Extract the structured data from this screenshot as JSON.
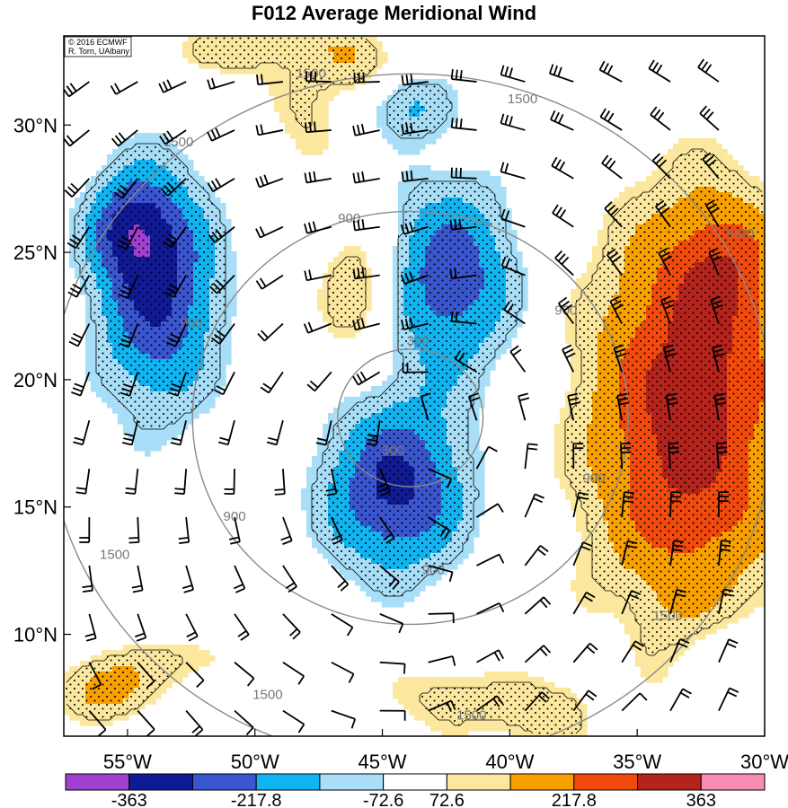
{
  "title": "F012 Average Meridional Wind",
  "credit": {
    "line1": "© 2016 ECMWF",
    "line2": "R. Torn, UAlbany"
  },
  "map": {
    "lon_range": [
      -57.5,
      -30
    ],
    "lat_range": [
      6,
      33.5
    ],
    "lon_ticks": [
      {
        "value": -55,
        "label": "55°W"
      },
      {
        "value": -50,
        "label": "50°W"
      },
      {
        "value": -45,
        "label": "45°W"
      },
      {
        "value": -40,
        "label": "40°W"
      },
      {
        "value": -35,
        "label": "35°W"
      },
      {
        "value": -30,
        "label": "30°W"
      }
    ],
    "lat_ticks": [
      {
        "value": 30,
        "label": "30°N"
      },
      {
        "value": 25,
        "label": "25°N"
      },
      {
        "value": 20,
        "label": "20°N"
      },
      {
        "value": 15,
        "label": "15°N"
      },
      {
        "value": 10,
        "label": "10°N"
      }
    ],
    "range_rings": {
      "center": {
        "lon": -43.9,
        "lat": 18.5
      },
      "radii_km": [
        300,
        900,
        1500
      ],
      "labels": [
        {
          "text": "300",
          "lon": -43.6,
          "lat": 21.5
        },
        {
          "text": "300",
          "lon": -44.6,
          "lat": 17.2
        },
        {
          "text": "900",
          "lon": -46.3,
          "lat": 26.3
        },
        {
          "text": "900",
          "lon": -37.8,
          "lat": 22.7
        },
        {
          "text": "900",
          "lon": -50.8,
          "lat": 14.6
        },
        {
          "text": "900",
          "lon": -52.5,
          "lat": 22.2
        },
        {
          "text": "900",
          "lon": -43.0,
          "lat": 12.5
        },
        {
          "text": "900",
          "lon": -36.7,
          "lat": 16.1
        },
        {
          "text": "1500",
          "lon": -47.8,
          "lat": 32.0
        },
        {
          "text": "1500",
          "lon": -39.5,
          "lat": 31.0
        },
        {
          "text": "1500",
          "lon": -53.0,
          "lat": 29.3
        },
        {
          "text": "1500",
          "lon": -55.5,
          "lat": 13.1
        },
        {
          "text": "1500",
          "lon": -31.0,
          "lat": 25.7
        },
        {
          "text": "1500",
          "lon": -49.5,
          "lat": 7.6
        },
        {
          "text": "1500",
          "lon": -41.5,
          "lat": 6.8
        },
        {
          "text": "1500",
          "lon": -33.8,
          "lat": 10.7
        }
      ]
    },
    "field": {
      "name": "average meridional wind",
      "anomalies": [
        {
          "lon": -53.8,
          "lat": 23.5,
          "amp": -300,
          "sx": 1.8,
          "sy": 3.5
        },
        {
          "lon": -55.0,
          "lat": 26.0,
          "amp": -180,
          "sx": 1.2,
          "sy": 1.4
        },
        {
          "lon": -42.3,
          "lat": 24.0,
          "amp": -270,
          "sx": 2.0,
          "sy": 2.8
        },
        {
          "lon": -44.5,
          "lat": 15.7,
          "amp": -310,
          "sx": 2.1,
          "sy": 2.5
        },
        {
          "lon": -44.0,
          "lat": 30.8,
          "amp": -150,
          "sx": 1.3,
          "sy": 1.0
        },
        {
          "lon": -33.0,
          "lat": 18.5,
          "amp": 330,
          "sx": 3.0,
          "sy": 6.0
        },
        {
          "lon": -31.5,
          "lat": 24.5,
          "amp": 130,
          "sx": 1.5,
          "sy": 2.0
        },
        {
          "lon": -46.0,
          "lat": 23.5,
          "amp": 175,
          "sx": 1.1,
          "sy": 2.0
        },
        {
          "lon": -48.0,
          "lat": 30.5,
          "amp": 100,
          "sx": 1.2,
          "sy": 1.8
        },
        {
          "lon": -46.0,
          "lat": 32.5,
          "amp": 140,
          "sx": 1.2,
          "sy": 1.0
        },
        {
          "lon": -56.0,
          "lat": 7.8,
          "amp": 175,
          "sx": 1.4,
          "sy": 1.0
        },
        {
          "lon": -42.5,
          "lat": 7.5,
          "amp": 110,
          "sx": 2.0,
          "sy": 1.2
        },
        {
          "lon": -38.5,
          "lat": 6.8,
          "amp": 120,
          "sx": 1.5,
          "sy": 1.0
        },
        {
          "lon": -52.5,
          "lat": 9.0,
          "amp": 95,
          "sx": 2.0,
          "sy": 0.9
        },
        {
          "lon": -36.0,
          "lat": 7.0,
          "amp": -110,
          "sx": 0.6,
          "sy": 1.8
        },
        {
          "lon": -31.0,
          "lat": 9.0,
          "amp": -120,
          "sx": 1.2,
          "sy": 1.0
        },
        {
          "lon": -51.5,
          "lat": 32.8,
          "amp": 120,
          "sx": 1.5,
          "sy": 0.8
        },
        {
          "lon": -49.0,
          "lat": 33.5,
          "amp": 100,
          "sx": 1.5,
          "sy": 0.6
        }
      ]
    },
    "colorbar": {
      "colors": [
        "#a040d0",
        "#101a96",
        "#3a55d0",
        "#10b4f0",
        "#a8def7",
        "#ffffff",
        "#fbe79d",
        "#f7a000",
        "#f24a0c",
        "#b4231c",
        "#f88cb4"
      ],
      "boundaries": [
        -436,
        -363,
        -290.4,
        -217.8,
        -145.2,
        -72.6,
        72.6,
        145.2,
        217.8,
        290.4,
        363,
        436
      ],
      "labels": [
        {
          "value": -363,
          "text": "-363"
        },
        {
          "value": -217.8,
          "text": "-217.8"
        },
        {
          "value": -72.6,
          "text": "-72.6"
        },
        {
          "value": 72.6,
          "text": "72.6"
        },
        {
          "value": 217.8,
          "text": "217.8"
        },
        {
          "value": 363,
          "text": "363"
        }
      ]
    }
  }
}
